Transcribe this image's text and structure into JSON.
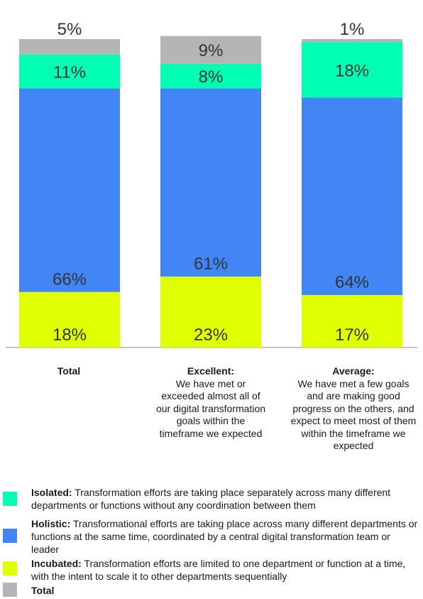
{
  "chart_data": {
    "type": "bar",
    "stacked": true,
    "categories": [
      "Total",
      "Excellent",
      "Average"
    ],
    "category_descriptions": [
      "",
      "We have met or exceeded almost all of our digital transformation goals within the timeframe we expected",
      "We have met a few goals and are making good progress on the others, and expect to meet most of them within the timeframe we expected"
    ],
    "category_titles": [
      "Total",
      "Excellent:",
      "Average:"
    ],
    "series": [
      {
        "name": "Incubated",
        "color": "#e0ff00",
        "values": [
          18,
          23,
          17
        ]
      },
      {
        "name": "Holistic",
        "color": "#4285f4",
        "values": [
          66,
          61,
          64
        ]
      },
      {
        "name": "Isolated",
        "color": "#00ffb4",
        "values": [
          11,
          8,
          18
        ]
      },
      {
        "name": "Total",
        "color": "#b5b5b5",
        "values": [
          5,
          9,
          1
        ]
      }
    ],
    "data_labels": [
      [
        "18%",
        "23%",
        "17%"
      ],
      [
        "66%",
        "61%",
        "64%"
      ],
      [
        "11%",
        "8%",
        "18%"
      ],
      [
        "5%",
        "9%",
        "1%"
      ]
    ],
    "ylim": [
      0,
      100
    ],
    "grid": false
  },
  "legend": [
    {
      "name": "Isolated:",
      "text": " Transformation efforts are taking place separately across many different departments or functions without any coordination between them",
      "color": "#00ffb4"
    },
    {
      "name": "Holistic:",
      "text": " Transformational efforts are taking place across many different departments or functions at the same time, coordinated by a central digital transformation team or leader",
      "color": "#4285f4"
    },
    {
      "name": "Incubated:",
      "text": " Transformation efforts are limited to one department or function at a time, with the intent to scale it to other departments sequentially",
      "color": "#e0ff00"
    },
    {
      "name": "Total",
      "text": "",
      "color": "#b5b5b5"
    }
  ]
}
